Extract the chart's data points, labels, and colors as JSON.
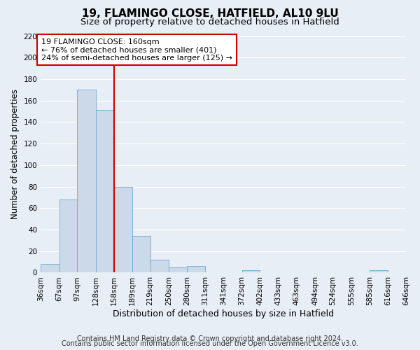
{
  "title": "19, FLAMINGO CLOSE, HATFIELD, AL10 9LU",
  "subtitle": "Size of property relative to detached houses in Hatfield",
  "xlabel": "Distribution of detached houses by size in Hatfield",
  "ylabel": "Number of detached properties",
  "bin_edges": [
    36,
    67,
    97,
    128,
    158,
    189,
    219,
    250,
    280,
    311,
    341,
    372,
    402,
    433,
    463,
    494,
    524,
    555,
    585,
    616,
    646
  ],
  "bar_heights": [
    8,
    68,
    170,
    151,
    80,
    34,
    12,
    5,
    6,
    0,
    0,
    2,
    0,
    0,
    0,
    0,
    0,
    0,
    2,
    0
  ],
  "bar_color": "#ccd9e8",
  "bar_edge_color": "#6aaad4",
  "vline_x": 158,
  "vline_color": "#cc0000",
  "vline_lw": 1.5,
  "ylim": [
    0,
    220
  ],
  "yticks": [
    0,
    20,
    40,
    60,
    80,
    100,
    120,
    140,
    160,
    180,
    200,
    220
  ],
  "annotation_title": "19 FLAMINGO CLOSE: 160sqm",
  "annotation_line1": "← 76% of detached houses are smaller (401)",
  "annotation_line2": "24% of semi-detached houses are larger (125) →",
  "annotation_box_color": "white",
  "annotation_box_edge_color": "#cc0000",
  "footnote1": "Contains HM Land Registry data © Crown copyright and database right 2024.",
  "footnote2": "Contains public sector information licensed under the Open Government Licence v3.0.",
  "background_color": "#e8eef5",
  "grid_color": "white",
  "title_fontsize": 11,
  "subtitle_fontsize": 9.5,
  "xlabel_fontsize": 9,
  "ylabel_fontsize": 8.5,
  "tick_fontsize": 7.5,
  "annotation_fontsize": 8,
  "footnote_fontsize": 7
}
